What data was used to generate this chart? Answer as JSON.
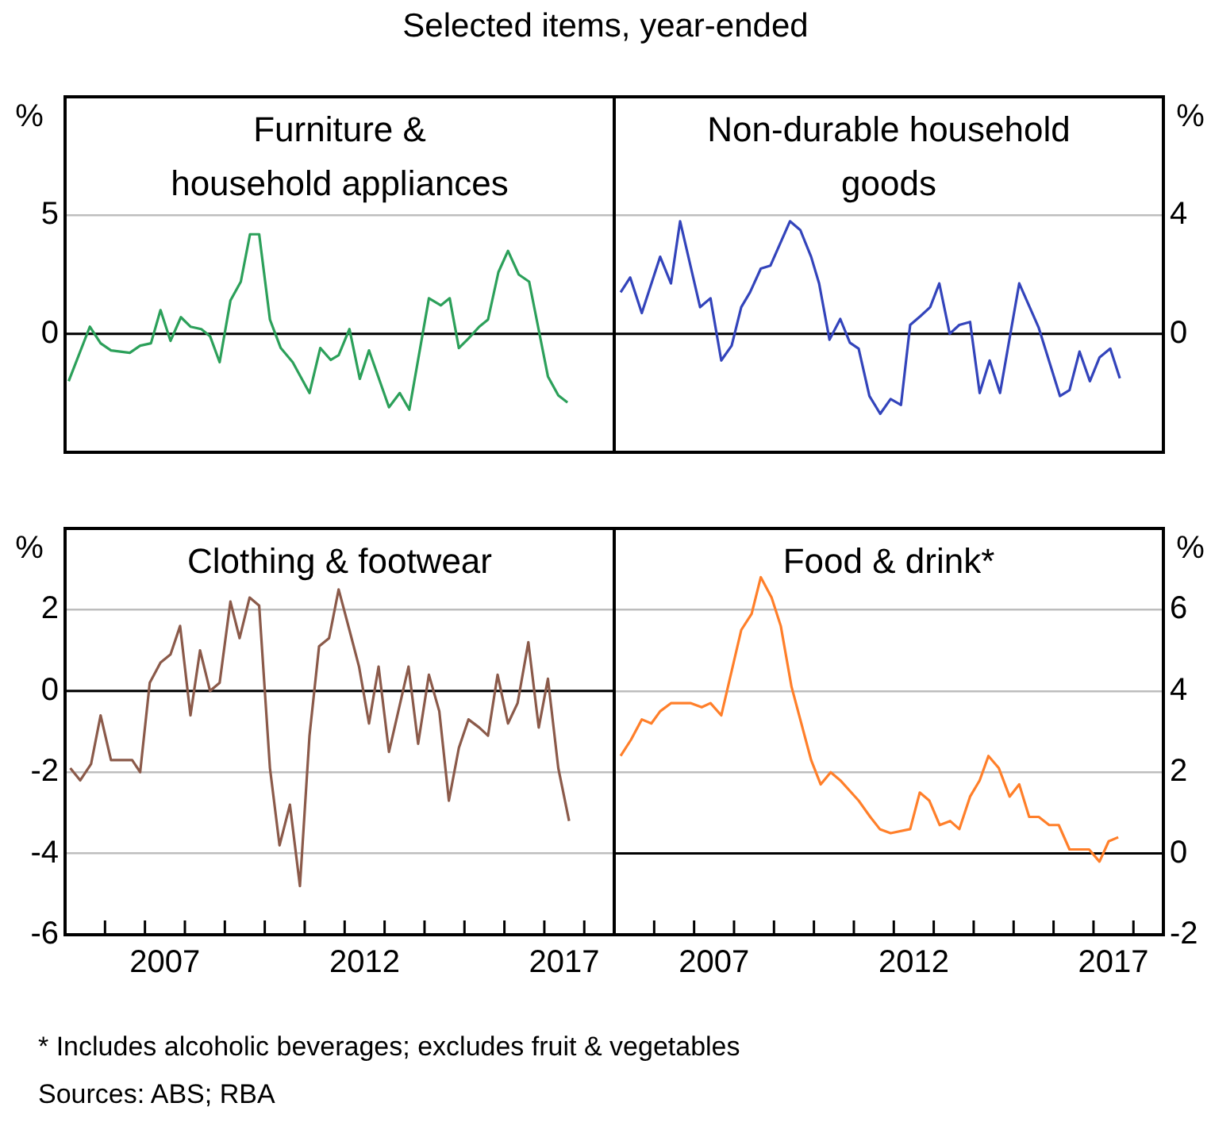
{
  "chart_data": [
    {
      "type": "line",
      "title": "Furniture &\nhousehold appliances",
      "ylabel": "%",
      "annotations": [
        "Selected items, year-ended"
      ],
      "color": "#2ca05a",
      "xlim": [
        2005,
        2018.75
      ],
      "ylim": [
        -5,
        10
      ],
      "yticks": [
        0,
        5
      ],
      "grid": "y",
      "tick_labels": "y",
      "ref_lines": [
        {
          "axis": "y",
          "value": 0,
          "color": "#000000"
        }
      ],
      "x": [
        2005.09,
        2005.62,
        2005.89,
        2006.15,
        2006.62,
        2006.88,
        2007.15,
        2007.39,
        2007.64,
        2007.9,
        2008.14,
        2008.41,
        2008.63,
        2008.87,
        2009.14,
        2009.4,
        2009.63,
        2009.86,
        2010.13,
        2010.4,
        2010.7,
        2011.12,
        2011.39,
        2011.65,
        2011.85,
        2012.12,
        2012.38,
        2012.61,
        2013.11,
        2013.38,
        2013.62,
        2014.11,
        2014.41,
        2014.63,
        2014.86,
        2015.1,
        2015.37,
        2015.59,
        2015.85,
        2016.09,
        2016.36,
        2016.62,
        2016.82,
        2017.09,
        2017.35,
        2017.58
      ],
      "values": [
        -2.0,
        0.3,
        -0.4,
        -0.7,
        -0.8,
        -0.5,
        -0.4,
        1.0,
        -0.3,
        0.7,
        0.3,
        0.2,
        -0.1,
        -1.2,
        1.4,
        2.2,
        4.2,
        4.2,
        0.6,
        -0.6,
        -1.2,
        -2.5,
        -0.6,
        -1.1,
        -0.9,
        0.2,
        -1.9,
        -0.7,
        -3.1,
        -2.5,
        -3.2,
        1.5,
        1.2,
        1.5,
        -0.6,
        -0.2,
        0.3,
        0.6,
        2.6,
        3.5,
        2.5,
        2.2,
        0.5,
        -1.8,
        -2.6,
        -2.9
      ]
    },
    {
      "type": "line",
      "title": "Non-durable household\ngoods",
      "ylabel": "%",
      "color": "#3344bb",
      "xlim": [
        2005,
        2018.75
      ],
      "ylim": [
        -4,
        8
      ],
      "yticks": [
        0,
        4
      ],
      "grid": "y",
      "tick_labels": "y",
      "ref_lines": [
        {
          "axis": "y",
          "value": 0,
          "color": "#000000"
        }
      ],
      "x": [
        2005.16,
        2005.4,
        2005.69,
        2006.15,
        2006.42,
        2006.65,
        2007.15,
        2007.41,
        2007.68,
        2007.94,
        2008.18,
        2008.4,
        2008.67,
        2008.91,
        2009.4,
        2009.66,
        2009.93,
        2010.13,
        2010.39,
        2010.66,
        2010.9,
        2011.12,
        2011.39,
        2011.66,
        2011.92,
        2012.18,
        2012.41,
        2012.67,
        2012.91,
        2013.14,
        2013.4,
        2013.64,
        2013.91,
        2014.15,
        2014.4,
        2014.66,
        2015.14,
        2015.63,
        2016.16,
        2016.4,
        2016.65,
        2016.91,
        2017.15,
        2017.42,
        2017.66
      ],
      "values": [
        1.4,
        1.9,
        0.7,
        2.6,
        1.7,
        3.8,
        0.9,
        1.2,
        -0.9,
        -0.4,
        0.9,
        1.4,
        2.2,
        2.3,
        3.8,
        3.5,
        2.6,
        1.7,
        -0.2,
        0.5,
        -0.3,
        -0.5,
        -2.1,
        -2.7,
        -2.2,
        -2.4,
        0.3,
        0.6,
        0.9,
        1.7,
        0.0,
        0.3,
        0.4,
        -2.0,
        -0.9,
        -2.0,
        1.7,
        0.2,
        -2.1,
        -1.9,
        -0.6,
        -1.6,
        -0.8,
        -0.5,
        -1.5
      ]
    },
    {
      "type": "line",
      "title": "Clothing & footwear",
      "ylabel": "%",
      "color": "#8b5a4a",
      "xlim": [
        2005,
        2018.75
      ],
      "ylim": [
        -6,
        4
      ],
      "yticks": [
        -6,
        -4,
        -2,
        0,
        2
      ],
      "grid": "y",
      "ref_lines": [
        {
          "axis": "y",
          "value": 0,
          "color": "#000000"
        }
      ],
      "xticks": [
        {
          "value": 2006,
          "label": null
        },
        {
          "value": 2007,
          "label": null
        },
        {
          "value": 2008,
          "label": null
        },
        {
          "value": 2009,
          "label": null
        },
        {
          "value": 2010,
          "label": null
        },
        {
          "value": 2011,
          "label": null
        },
        {
          "value": 2012,
          "label": null
        },
        {
          "value": 2013,
          "label": null
        },
        {
          "value": 2014,
          "label": null
        },
        {
          "value": 2015,
          "label": null
        },
        {
          "value": 2016,
          "label": null
        },
        {
          "value": 2017,
          "label": null
        },
        {
          "value": 2018,
          "label": null
        },
        {
          "value": 2007.5,
          "label": "2007"
        },
        {
          "value": 2012.5,
          "label": "2012"
        },
        {
          "value": 2017.5,
          "label": "2017"
        }
      ],
      "x": [
        2005.13,
        2005.38,
        2005.65,
        2005.89,
        2006.15,
        2006.42,
        2006.68,
        2006.88,
        2007.12,
        2007.39,
        2007.64,
        2007.88,
        2008.14,
        2008.38,
        2008.63,
        2008.87,
        2009.14,
        2009.37,
        2009.62,
        2009.86,
        2010.13,
        2010.37,
        2010.63,
        2010.88,
        2011.12,
        2011.36,
        2011.61,
        2011.85,
        2012.12,
        2012.36,
        2012.61,
        2012.85,
        2013.11,
        2013.6,
        2013.84,
        2014.11,
        2014.37,
        2014.61,
        2014.86,
        2015.1,
        2015.37,
        2015.59,
        2015.83,
        2016.09,
        2016.33,
        2016.6,
        2016.86,
        2017.09,
        2017.35,
        2017.62
      ],
      "values": [
        -1.9,
        -2.2,
        -1.8,
        -0.6,
        -1.7,
        -1.7,
        -1.7,
        -2.0,
        0.2,
        0.7,
        0.9,
        1.6,
        -0.6,
        1.0,
        0.0,
        0.2,
        2.2,
        1.3,
        2.3,
        2.1,
        -1.9,
        -3.8,
        -2.8,
        -4.8,
        -1.1,
        1.1,
        1.3,
        2.5,
        1.5,
        0.6,
        -0.8,
        0.6,
        -1.5,
        0.6,
        -1.3,
        0.4,
        -0.5,
        -2.7,
        -1.4,
        -0.7,
        -0.9,
        -1.1,
        0.4,
        -0.8,
        -0.3,
        1.2,
        -0.9,
        0.3,
        -1.9,
        -3.2
      ]
    },
    {
      "type": "line",
      "title": "Food & drink*",
      "ylabel": "%",
      "annotations": [
        "* Includes alcoholic beverages; excludes fruit & vegetables",
        "Sources: ABS; RBA"
      ],
      "color": "#ff7f2a",
      "xlim": [
        2005,
        2018.75
      ],
      "ylim": [
        -2,
        8
      ],
      "yticks": [
        -2,
        0,
        2,
        4,
        6
      ],
      "grid": "y",
      "ref_lines": [
        {
          "axis": "y",
          "value": 0,
          "color": "#000000"
        }
      ],
      "xticks": [
        {
          "value": 2006,
          "label": null
        },
        {
          "value": 2007,
          "label": null
        },
        {
          "value": 2008,
          "label": null
        },
        {
          "value": 2009,
          "label": null
        },
        {
          "value": 2010,
          "label": null
        },
        {
          "value": 2011,
          "label": null
        },
        {
          "value": 2012,
          "label": null
        },
        {
          "value": 2013,
          "label": null
        },
        {
          "value": 2014,
          "label": null
        },
        {
          "value": 2015,
          "label": null
        },
        {
          "value": 2016,
          "label": null
        },
        {
          "value": 2017,
          "label": null
        },
        {
          "value": 2018,
          "label": null
        },
        {
          "value": 2007.5,
          "label": "2007"
        },
        {
          "value": 2012.5,
          "label": "2012"
        },
        {
          "value": 2017.5,
          "label": "2017"
        }
      ],
      "x": [
        2005.16,
        2005.42,
        2005.69,
        2005.93,
        2006.15,
        2006.42,
        2006.68,
        2006.92,
        2007.19,
        2007.41,
        2007.68,
        2008.18,
        2008.44,
        2008.67,
        2008.94,
        2009.17,
        2009.44,
        2009.93,
        2010.17,
        2010.42,
        2010.66,
        2011.12,
        2011.41,
        2011.65,
        2011.92,
        2012.41,
        2012.65,
        2012.89,
        2013.15,
        2013.41,
        2013.64,
        2013.91,
        2014.15,
        2014.37,
        2014.63,
        2014.9,
        2015.14,
        2015.39,
        2015.63,
        2015.89,
        2016.13,
        2016.4,
        2016.62,
        2016.89,
        2017.15,
        2017.38,
        2017.62
      ],
      "values": [
        2.4,
        2.8,
        3.3,
        3.2,
        3.5,
        3.7,
        3.7,
        3.7,
        3.6,
        3.7,
        3.4,
        5.5,
        5.9,
        6.8,
        6.3,
        5.6,
        4.1,
        2.3,
        1.7,
        2.0,
        1.8,
        1.3,
        0.9,
        0.6,
        0.5,
        0.6,
        1.5,
        1.3,
        0.7,
        0.8,
        0.6,
        1.4,
        1.8,
        2.4,
        2.1,
        1.4,
        1.7,
        0.9,
        0.9,
        0.7,
        0.7,
        0.1,
        0.1,
        0.1,
        -0.2,
        0.3,
        0.4
      ]
    }
  ]
}
